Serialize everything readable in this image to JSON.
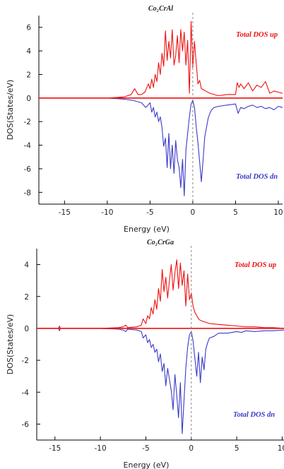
{
  "colors": {
    "up": "#ee1111",
    "dn": "#3a3ac8",
    "zero_line": "#ee1111",
    "fermi": "#888888",
    "axis": "#000000"
  },
  "chart_data": [
    {
      "type": "line",
      "title": "Co₂CrAl",
      "xlabel": "Energy (eV)",
      "ylabel": "DOS(States/eV)",
      "xlim": [
        -18,
        10.5
      ],
      "ylim": [
        -9,
        7
      ],
      "xticks": [
        -15,
        -10,
        -5,
        0,
        5,
        10
      ],
      "yticks": [
        -8,
        -6,
        -4,
        -2,
        0,
        2,
        4,
        6
      ],
      "fermi_level": 0,
      "grid": false,
      "legend_placement": "inline: up label top-right, dn label lower-right",
      "series": [
        {
          "name": "Total DOS up",
          "color": "#ee1111",
          "x": [
            -18,
            -10,
            -9,
            -8,
            -7.2,
            -6.8,
            -6.4,
            -6,
            -5.6,
            -5.2,
            -5,
            -4.8,
            -4.6,
            -4.4,
            -4.2,
            -4,
            -3.8,
            -3.6,
            -3.4,
            -3.2,
            -3,
            -2.8,
            -2.6,
            -2.4,
            -2.2,
            -2,
            -1.8,
            -1.6,
            -1.4,
            -1.2,
            -1,
            -0.8,
            -0.6,
            -0.4,
            -0.2,
            0,
            0.2,
            0.4,
            0.6,
            0.8,
            1,
            1.5,
            2,
            3,
            4,
            5,
            5.2,
            5.4,
            5.6,
            6,
            6.5,
            7,
            7.5,
            8,
            8.5,
            9,
            9.5,
            10,
            10.5
          ],
          "y": [
            0,
            0,
            0.05,
            0.1,
            0.3,
            0.8,
            0.3,
            0.3,
            0.5,
            1.2,
            0.8,
            1.6,
            0.9,
            2,
            1.4,
            3,
            2,
            3.8,
            2.7,
            5.7,
            3.2,
            4.8,
            3.4,
            5.8,
            2.8,
            3.6,
            5.3,
            3,
            5.8,
            4,
            5.6,
            2.8,
            4.9,
            0.4,
            6.5,
            2.6,
            4.8,
            3,
            1.2,
            1.5,
            0.8,
            0.6,
            0.4,
            0.2,
            0.3,
            0.3,
            1.3,
            0.9,
            1.2,
            0.8,
            1.3,
            0.6,
            1.1,
            0.9,
            1.4,
            0.4,
            0.6,
            0.5,
            0.4
          ]
        },
        {
          "name": "Total DOS dn",
          "color": "#3a3ac8",
          "x": [
            -18,
            -10,
            -9,
            -8,
            -7,
            -6,
            -5.5,
            -5,
            -4.8,
            -4.6,
            -4.4,
            -4.2,
            -4,
            -3.8,
            -3.6,
            -3.4,
            -3.2,
            -3,
            -2.8,
            -2.6,
            -2.4,
            -2.2,
            -2,
            -1.8,
            -1.6,
            -1.4,
            -1.2,
            -1,
            -0.8,
            -0.6,
            -0.4,
            -0.2,
            0,
            0.2,
            0.4,
            0.6,
            0.8,
            1,
            1.2,
            1.4,
            1.6,
            1.8,
            2,
            2.2,
            2.5,
            3,
            4,
            5,
            5.3,
            5.6,
            6,
            6.5,
            7,
            7.5,
            8,
            8.5,
            9,
            9.5,
            10,
            10.5
          ],
          "y": [
            0,
            0,
            -0.05,
            -0.1,
            -0.2,
            -0.4,
            -0.8,
            -0.4,
            -1.2,
            -0.8,
            -1.6,
            -1.2,
            -2,
            -1.6,
            -2.5,
            -4.1,
            -3.4,
            -5.9,
            -3,
            -6,
            -4,
            -6.4,
            -3.6,
            -5.2,
            -5.9,
            -7.6,
            -5.2,
            -8.3,
            -4.4,
            -3,
            -1.6,
            -0.5,
            -0.2,
            -0.8,
            -2.4,
            -3.8,
            -5.4,
            -7.1,
            -5.3,
            -3.3,
            -2.5,
            -1.7,
            -1.3,
            -1,
            -0.8,
            -0.7,
            -0.6,
            -0.5,
            -1.3,
            -0.8,
            -0.9,
            -0.7,
            -0.6,
            -0.8,
            -0.7,
            -0.9,
            -0.8,
            -1,
            -0.7,
            -0.8
          ]
        }
      ]
    },
    {
      "type": "line",
      "title": "Co₂CrGa",
      "xlabel": "Energy (eV)",
      "ylabel": "DOS(States/eV)",
      "xlim": [
        -17,
        10.2
      ],
      "ylim": [
        -7,
        5
      ],
      "xticks": [
        -15,
        -10,
        -5,
        0,
        5,
        10
      ],
      "yticks": [
        -6,
        -4,
        -2,
        0,
        2,
        4
      ],
      "fermi_level": 0,
      "grid": false,
      "legend_placement": "inline: up label top-right, dn label lower-right",
      "series": [
        {
          "name": "Total DOS up",
          "color": "#ee1111",
          "x": [
            -17,
            -14.6,
            -14.5,
            -14.4,
            -14.2,
            -10,
            -8,
            -7.5,
            -7.2,
            -7,
            -6,
            -5.5,
            -5.3,
            -5,
            -4.8,
            -4.6,
            -4.4,
            -4.2,
            -4,
            -3.8,
            -3.6,
            -3.4,
            -3.2,
            -3,
            -2.8,
            -2.6,
            -2.4,
            -2.2,
            -2,
            -1.8,
            -1.6,
            -1.4,
            -1.2,
            -1,
            -0.8,
            -0.6,
            -0.4,
            -0.2,
            0,
            0.2,
            0.4,
            0.6,
            0.8,
            1,
            1.5,
            2,
            3,
            4,
            5,
            6,
            7,
            8,
            9,
            10.2
          ],
          "y": [
            0,
            0,
            0.15,
            0,
            0,
            0,
            0.05,
            0.1,
            0.2,
            0.05,
            0.1,
            0.2,
            0.6,
            0.3,
            0.8,
            0.6,
            1.3,
            0.9,
            1.8,
            1.2,
            2.5,
            1.7,
            3.7,
            2.3,
            3.2,
            1.9,
            3,
            4,
            2.4,
            3.5,
            4.3,
            2.5,
            4.1,
            2.7,
            3.6,
            1.4,
            3.4,
            1.8,
            2.2,
            1.4,
            1,
            0.8,
            0.6,
            0.5,
            0.4,
            0.3,
            0.25,
            0.2,
            0.15,
            0.1,
            0.1,
            0.05,
            0.05,
            0
          ]
        },
        {
          "name": "Total DOS dn",
          "color": "#3a3ac8",
          "x": [
            -17,
            -14.6,
            -14.5,
            -14.4,
            -14.2,
            -10,
            -8,
            -7.5,
            -7.2,
            -7,
            -6,
            -5.5,
            -5.3,
            -5,
            -4.8,
            -4.6,
            -4.4,
            -4.2,
            -4,
            -3.8,
            -3.6,
            -3.4,
            -3.2,
            -3,
            -2.8,
            -2.6,
            -2.4,
            -2.2,
            -2,
            -1.8,
            -1.6,
            -1.4,
            -1.2,
            -1,
            -0.8,
            -0.6,
            -0.4,
            -0.2,
            0,
            0.2,
            0.4,
            0.6,
            0.8,
            1,
            1.2,
            1.4,
            1.6,
            1.8,
            2,
            2.5,
            3,
            4,
            5,
            5.5,
            6,
            7,
            8,
            9,
            10.2
          ],
          "y": [
            0,
            0,
            -0.15,
            0,
            0,
            0,
            -0.05,
            -0.1,
            -0.2,
            -0.05,
            -0.1,
            -0.2,
            -0.6,
            -0.4,
            -0.9,
            -0.7,
            -1.2,
            -1,
            -1.5,
            -1.3,
            -2.1,
            -1.6,
            -2.7,
            -2.2,
            -3.6,
            -2.5,
            -3.2,
            -3.9,
            -5.1,
            -2.9,
            -4.2,
            -5.6,
            -3.4,
            -6.6,
            -4.5,
            -2.5,
            -1.2,
            -0.4,
            -0.2,
            -0.8,
            -1.9,
            -3,
            -1.5,
            -3.4,
            -1.8,
            -2.6,
            -1.3,
            -0.9,
            -0.6,
            -0.5,
            -0.3,
            -0.3,
            -0.2,
            -0.25,
            -0.15,
            -0.2,
            -0.15,
            -0.15,
            -0.1
          ]
        }
      ]
    }
  ]
}
